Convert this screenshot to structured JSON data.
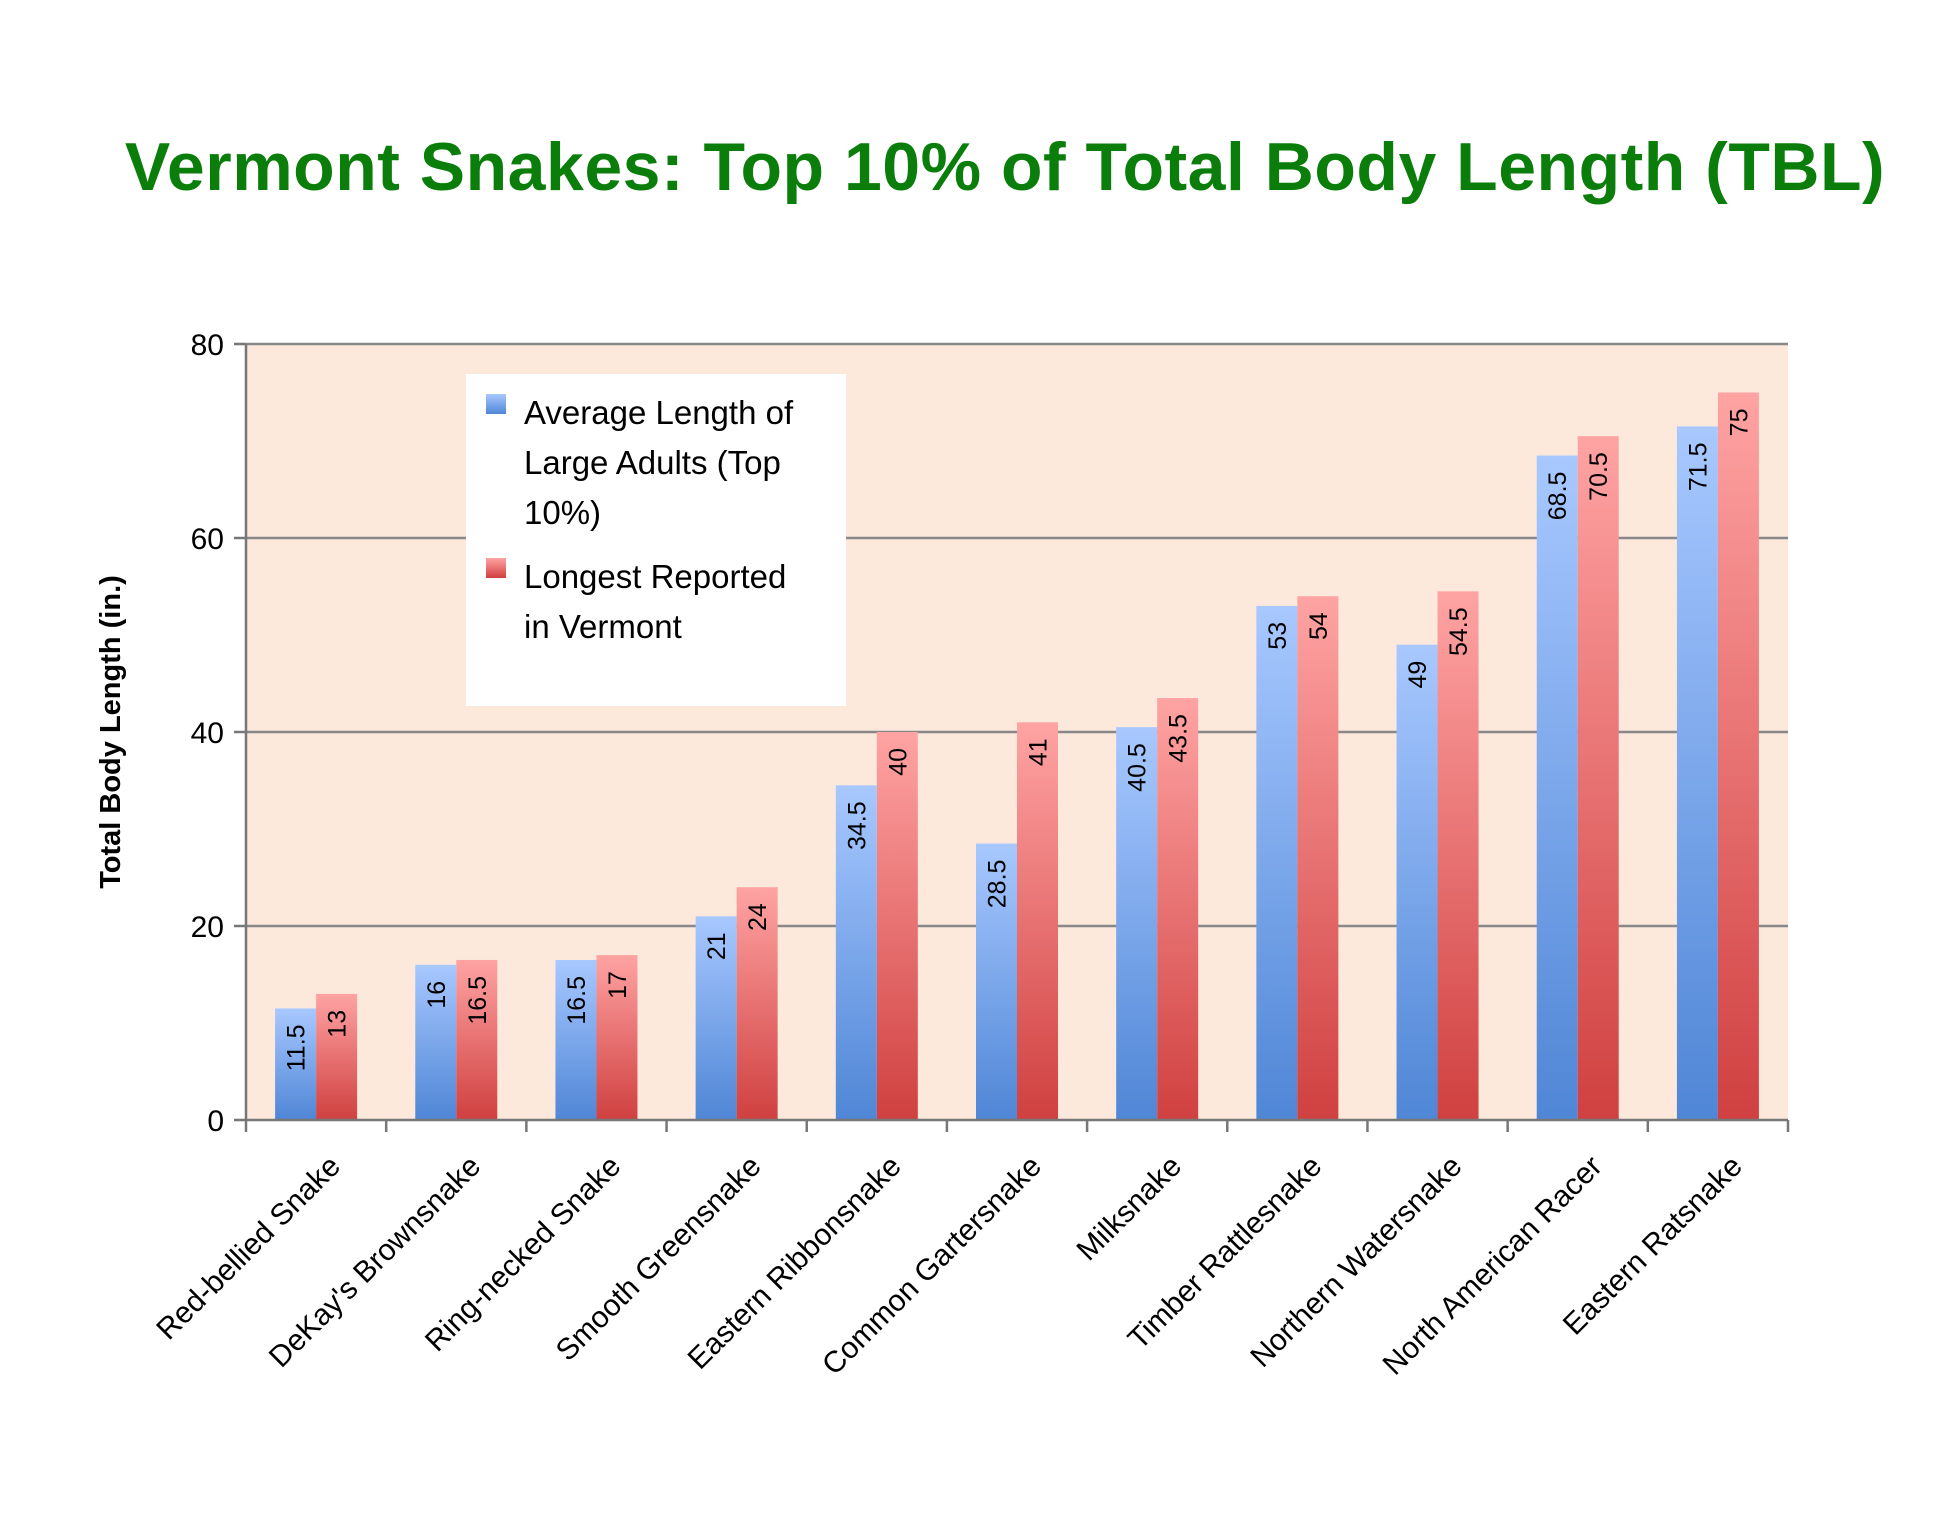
{
  "chart_data": {
    "type": "bar",
    "title": "Vermont Snakes: Top 10% of Total Body Length (TBL)",
    "xlabel": "",
    "ylabel": "Total Body Length (in.)",
    "ylim": [
      0,
      80
    ],
    "yticks": [
      0,
      20,
      40,
      60,
      80
    ],
    "grid": true,
    "legend_position": "top-left (inside plot)",
    "categories": [
      "Red-bellied Snake",
      "DeKay's Brownsnake",
      "Ring-necked Snake",
      "Smooth Greensnake",
      "Eastern Ribbonsnake",
      "Common Gartersnake",
      "Milksnake",
      "Timber Rattlesnake",
      "Northern Watersnake",
      "North American Racer",
      "Eastern Ratsnake"
    ],
    "series": [
      {
        "name": "Average Length of Large Adults (Top 10%)",
        "legend_lines": [
          "Average Length of",
          "Large Adults (Top",
          "10%)"
        ],
        "color": "#4f86d6",
        "color_light": "#a8c8ff",
        "values": [
          11.5,
          16,
          16.5,
          21,
          34.5,
          28.5,
          40.5,
          53,
          49,
          68.5,
          71.5
        ]
      },
      {
        "name": "Longest Reported in Vermont",
        "legend_lines": [
          "Longest Reported",
          "in Vermont"
        ],
        "color": "#d04040",
        "color_light": "#ffa3a3",
        "values": [
          13,
          16.5,
          17,
          24,
          40,
          41,
          43.5,
          54,
          54.5,
          70.5,
          75
        ]
      }
    ],
    "plot_background": "#fde9dc",
    "grid_color": "#888888"
  }
}
